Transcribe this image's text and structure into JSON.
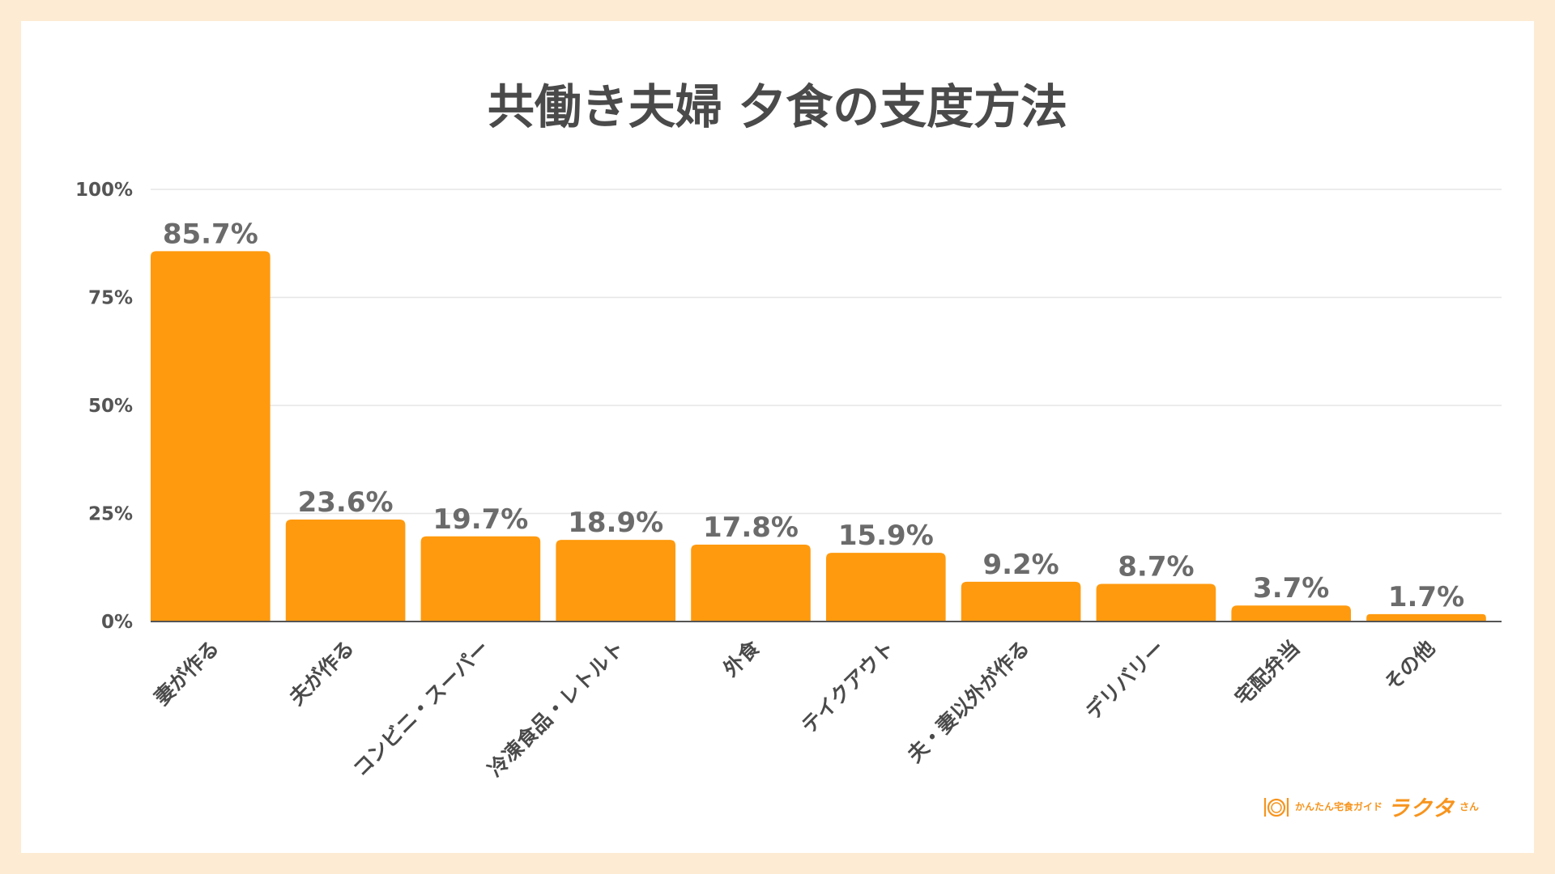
{
  "chart_data": {
    "type": "bar",
    "title": "共働き夫婦 夕食の支度方法",
    "categories": [
      "妻が作る",
      "夫が作る",
      "コンビニ・スーパー",
      "冷凍食品・レトルト",
      "外食",
      "テイクアウト",
      "夫・妻以外が作る",
      "デリバリー",
      "宅配弁当",
      "その他"
    ],
    "values": [
      85.7,
      23.6,
      19.7,
      18.9,
      17.8,
      15.9,
      9.2,
      8.7,
      3.7,
      1.7
    ],
    "value_labels": [
      "85.7%",
      "23.6%",
      "19.7%",
      "18.9%",
      "17.8%",
      "15.9%",
      "9.2%",
      "8.7%",
      "3.7%",
      "1.7%"
    ],
    "yticks": [
      0,
      25,
      50,
      75,
      100
    ],
    "ytick_labels": [
      "0%",
      "25%",
      "50%",
      "75%",
      "100%"
    ],
    "ylim": [
      0,
      100
    ],
    "grid": true,
    "bar_color": "#ff9a0e"
  },
  "logo": {
    "icon": "plate-icon",
    "tagline": "かんたん宅食ガイド",
    "name": "ラクタ",
    "suffix": "さん"
  }
}
